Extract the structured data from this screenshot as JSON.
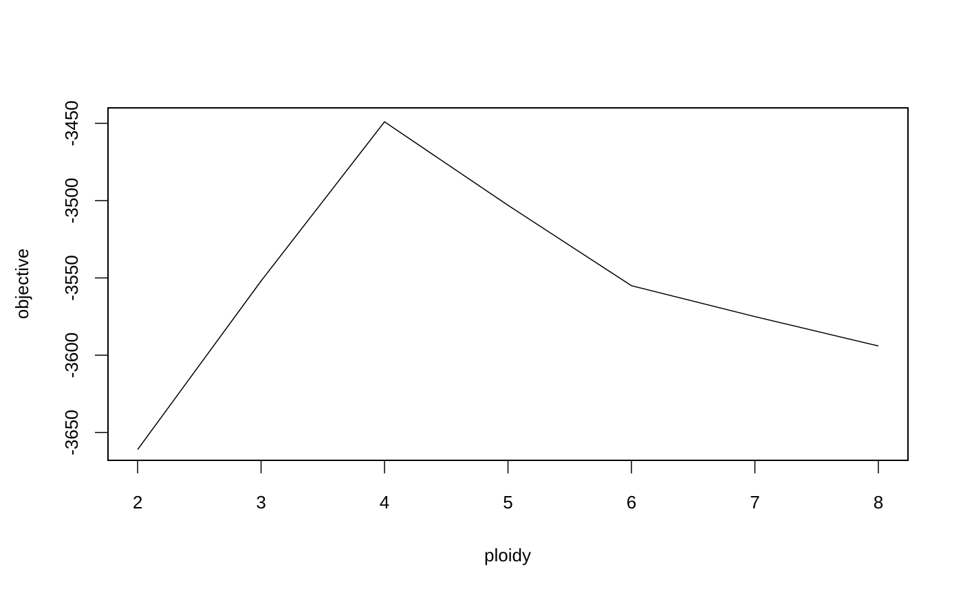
{
  "chart_data": {
    "type": "line",
    "title": "",
    "xlabel": "ploidy",
    "ylabel": "objective",
    "x": [
      2,
      3,
      4,
      5,
      6,
      7,
      8
    ],
    "series": [
      {
        "values": [
          -3661,
          -3552,
          -3449,
          -3503,
          -3555,
          -3575,
          -3594
        ]
      }
    ],
    "xlim": [
      1.76,
      8.24
    ],
    "ylim": [
      -3668,
      -3440
    ],
    "xticks": [
      2,
      3,
      4,
      5,
      6,
      7,
      8
    ],
    "yticks": [
      -3650,
      -3600,
      -3550,
      -3500,
      -3450
    ],
    "grid": false,
    "legend": "none",
    "colors": {
      "line": "#000000",
      "axis": "#000000",
      "background": "#ffffff"
    }
  }
}
